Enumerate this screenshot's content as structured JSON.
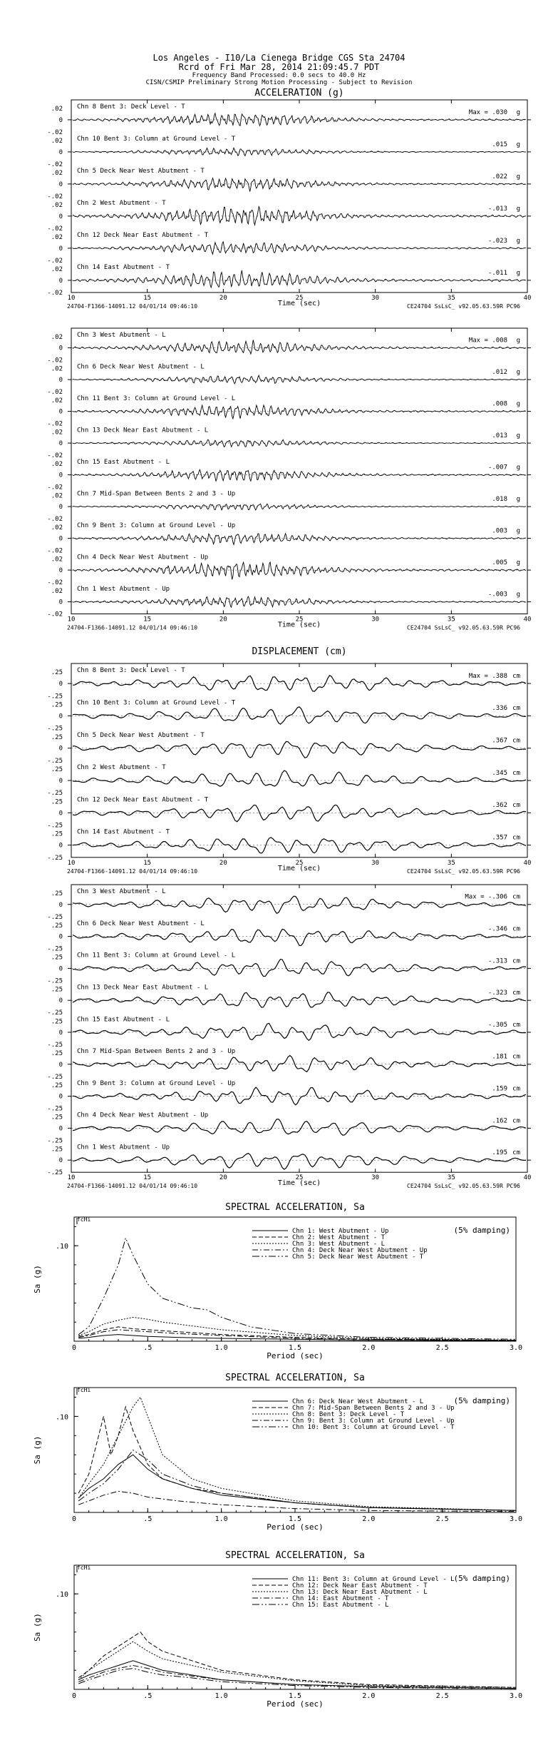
{
  "header": {
    "line1": "Los Angeles - I10/La Cienega Bridge     CGS Sta 24704",
    "line2": "Rcrd of Fri Mar 28, 2014 21:09:45.7 PDT",
    "line3": "Frequency Band Processed: 0.0 secs to 40.0 Hz",
    "line4": "CISN/CSMIP Preliminary Strong Motion Processing - Subject to Revision"
  },
  "footer": {
    "left": "24704-F1366-14091.12 04/01/14 09:46:10",
    "right": "CE24704  SsLsC_  v92.05.63.59R PC96",
    "time_label": "Time (sec)"
  },
  "time_ticks": [
    "10",
    "15",
    "20",
    "25",
    "30",
    "35",
    "40"
  ],
  "chart_data": [
    {
      "type": "line",
      "title": "ACCELERATION (g)",
      "xlabel": "Time (sec)",
      "xlim": [
        10,
        40
      ],
      "ylim": [
        -0.02,
        0.02
      ],
      "ytick_labels": [
        ".02",
        "0",
        "-.02"
      ],
      "max_label": "Max =",
      "series": [
        {
          "name": "Chn 8  Bent 3: Deck Level - T",
          "max": ".030",
          "unit": "g"
        },
        {
          "name": "Chn 10  Bent 3: Column at Ground Level - T",
          "max": ".015",
          "unit": "g"
        },
        {
          "name": "Chn 5  Deck Near West Abutment - T",
          "max": ".022",
          "unit": "g"
        },
        {
          "name": "Chn 2  West Abutment - T",
          "max": "-.013",
          "unit": "g"
        },
        {
          "name": "Chn 12  Deck Near East Abutment - T",
          "max": "-.023",
          "unit": "g"
        },
        {
          "name": "Chn 14  East Abutment - T",
          "max": "-.011",
          "unit": "g"
        }
      ]
    },
    {
      "type": "line",
      "title": "",
      "xlabel": "Time (sec)",
      "xlim": [
        10,
        40
      ],
      "ylim": [
        -0.02,
        0.02
      ],
      "ytick_labels": [
        ".02",
        "0",
        "-.02"
      ],
      "max_label": "Max =",
      "series": [
        {
          "name": "Chn 3  West Abutment - L",
          "max": ".008",
          "unit": "g"
        },
        {
          "name": "Chn 6  Deck Near West Abutment - L",
          "max": ".012",
          "unit": "g"
        },
        {
          "name": "Chn 11  Bent 3: Column at Ground Level - L",
          "max": ".008",
          "unit": "g"
        },
        {
          "name": "Chn 13  Deck Near East Abutment - L",
          "max": ".013",
          "unit": "g"
        },
        {
          "name": "Chn 15  East Abutment - L",
          "max": "-.007",
          "unit": "g"
        },
        {
          "name": "Chn 7  Mid-Span Between Bents 2 and 3 - Up",
          "max": ".018",
          "unit": "g"
        },
        {
          "name": "Chn 9  Bent 3: Column at Ground Level - Up",
          "max": ".003",
          "unit": "g"
        },
        {
          "name": "Chn 4  Deck Near West Abutment - Up",
          "max": ".005",
          "unit": "g"
        },
        {
          "name": "Chn 1  West Abutment - Up",
          "max": "-.003",
          "unit": "g"
        }
      ]
    },
    {
      "type": "line",
      "title": "DISPLACEMENT (cm)",
      "xlabel": "Time (sec)",
      "xlim": [
        10,
        40
      ],
      "ylim": [
        -0.25,
        0.25
      ],
      "ytick_labels": [
        ".25",
        "0",
        "-.25"
      ],
      "max_label": "Max =",
      "series": [
        {
          "name": "Chn 8  Bent 3: Deck Level - T",
          "max": ".388",
          "unit": "cm"
        },
        {
          "name": "Chn 10  Bent 3: Column at Ground Level - T",
          "max": ".336",
          "unit": "cm"
        },
        {
          "name": "Chn 5  Deck Near West Abutment - T",
          "max": ".367",
          "unit": "cm"
        },
        {
          "name": "Chn 2  West Abutment - T",
          "max": ".345",
          "unit": "cm"
        },
        {
          "name": "Chn 12  Deck Near East Abutment - T",
          "max": ".362",
          "unit": "cm"
        },
        {
          "name": "Chn 14  East Abutment - T",
          "max": ".357",
          "unit": "cm"
        }
      ]
    },
    {
      "type": "line",
      "title": "",
      "xlabel": "Time (sec)",
      "xlim": [
        10,
        40
      ],
      "ylim": [
        -0.25,
        0.25
      ],
      "ytick_labels": [
        ".25",
        "0",
        "-.25"
      ],
      "max_label": "Max =",
      "series": [
        {
          "name": "Chn 3  West Abutment - L",
          "max": "-.306",
          "unit": "cm"
        },
        {
          "name": "Chn 6  Deck Near West Abutment - L",
          "max": "-.346",
          "unit": "cm"
        },
        {
          "name": "Chn 11  Bent 3: Column at Ground Level - L",
          "max": "-.313",
          "unit": "cm"
        },
        {
          "name": "Chn 13  Deck Near East Abutment - L",
          "max": "-.323",
          "unit": "cm"
        },
        {
          "name": "Chn 15  East Abutment - L",
          "max": "-.305",
          "unit": "cm"
        },
        {
          "name": "Chn 7  Mid-Span Between Bents 2 and 3 - Up",
          "max": ".181",
          "unit": "cm"
        },
        {
          "name": "Chn 9  Bent 3: Column at Ground Level - Up",
          "max": ".159",
          "unit": "cm"
        },
        {
          "name": "Chn 4  Deck Near West Abutment - Up",
          "max": ".162",
          "unit": "cm"
        },
        {
          "name": "Chn 1  West Abutment - Up",
          "max": ".195",
          "unit": "cm"
        }
      ]
    },
    {
      "type": "line",
      "title": "SPECTRAL ACCELERATION, Sa",
      "xlabel": "Period (sec)",
      "ylabel": "Sa (g)",
      "xlim": [
        0,
        3.0
      ],
      "ylim": [
        0,
        0.13
      ],
      "xtick_labels": [
        "0",
        ".5",
        "1.0",
        "1.5",
        "2.0",
        "2.5",
        "3.0"
      ],
      "ytick_labels": [
        ".10"
      ],
      "marker_label": "fcHi",
      "damping": "(5% damping)",
      "series": [
        {
          "name": "Chn 1: West Abutment - Up",
          "x": [
            0.03,
            0.1,
            0.2,
            0.3,
            0.4,
            0.5,
            0.7,
            1.0,
            1.5,
            2.0,
            3.0
          ],
          "y": [
            0.003,
            0.004,
            0.006,
            0.007,
            0.006,
            0.005,
            0.004,
            0.003,
            0.002,
            0.001,
            0.0005
          ]
        },
        {
          "name": "Chn 2: West Abutment - T",
          "x": [
            0.03,
            0.1,
            0.2,
            0.3,
            0.4,
            0.5,
            0.6,
            0.8,
            1.0,
            1.5,
            2.0,
            3.0
          ],
          "y": [
            0.005,
            0.007,
            0.012,
            0.015,
            0.013,
            0.012,
            0.011,
            0.009,
            0.007,
            0.004,
            0.002,
            0.001
          ]
        },
        {
          "name": "Chn 3: West Abutment - L",
          "x": [
            0.03,
            0.1,
            0.2,
            0.3,
            0.4,
            0.5,
            0.6,
            0.8,
            1.0,
            1.5,
            2.0,
            3.0
          ],
          "y": [
            0.006,
            0.01,
            0.018,
            0.022,
            0.025,
            0.023,
            0.02,
            0.016,
            0.012,
            0.006,
            0.003,
            0.001
          ]
        },
        {
          "name": "Chn 4: Deck Near West Abutment - Up",
          "x": [
            0.03,
            0.1,
            0.2,
            0.3,
            0.4,
            0.5,
            0.7,
            1.0,
            1.5,
            2.0,
            3.0
          ],
          "y": [
            0.004,
            0.006,
            0.01,
            0.012,
            0.011,
            0.01,
            0.008,
            0.006,
            0.003,
            0.002,
            0.001
          ]
        },
        {
          "name": "Chn 5: Deck Near West Abutment - T",
          "x": [
            0.03,
            0.1,
            0.2,
            0.3,
            0.35,
            0.4,
            0.5,
            0.6,
            0.8,
            0.9,
            1.0,
            1.2,
            1.5,
            2.0,
            3.0
          ],
          "y": [
            0.007,
            0.015,
            0.045,
            0.08,
            0.108,
            0.09,
            0.06,
            0.045,
            0.035,
            0.033,
            0.025,
            0.015,
            0.008,
            0.004,
            0.002
          ]
        }
      ]
    },
    {
      "type": "line",
      "title": "SPECTRAL ACCELERATION, Sa",
      "xlabel": "Period (sec)",
      "ylabel": "Sa (g)",
      "xlim": [
        0,
        3.0
      ],
      "ylim": [
        0,
        0.13
      ],
      "xtick_labels": [
        "0",
        ".5",
        "1.0",
        "1.5",
        "2.0",
        "2.5",
        "3.0"
      ],
      "ytick_labels": [
        ".10"
      ],
      "marker_label": "fcHi",
      "damping": "(5% damping)",
      "series": [
        {
          "name": "Chn 6: Deck Near West Abutment - L",
          "x": [
            0.03,
            0.1,
            0.2,
            0.3,
            0.4,
            0.5,
            0.6,
            0.8,
            1.0,
            1.5,
            2.0,
            3.0
          ],
          "y": [
            0.015,
            0.025,
            0.035,
            0.05,
            0.06,
            0.045,
            0.035,
            0.025,
            0.018,
            0.01,
            0.005,
            0.002
          ]
        },
        {
          "name": "Chn 7: Mid-Span Between Bents 2 and 3 - Up",
          "x": [
            0.03,
            0.1,
            0.15,
            0.2,
            0.25,
            0.3,
            0.35,
            0.4,
            0.5,
            0.6,
            0.8,
            1.0,
            1.5,
            2.0,
            3.0
          ],
          "y": [
            0.02,
            0.04,
            0.07,
            0.1,
            0.06,
            0.08,
            0.11,
            0.085,
            0.05,
            0.035,
            0.025,
            0.02,
            0.01,
            0.005,
            0.002
          ]
        },
        {
          "name": "Chn 8: Bent 3: Deck Level - T",
          "x": [
            0.03,
            0.1,
            0.2,
            0.3,
            0.4,
            0.45,
            0.5,
            0.6,
            0.8,
            1.0,
            1.5,
            2.0,
            3.0
          ],
          "y": [
            0.015,
            0.03,
            0.05,
            0.08,
            0.11,
            0.12,
            0.1,
            0.06,
            0.035,
            0.025,
            0.012,
            0.006,
            0.002
          ]
        },
        {
          "name": "Chn 9: Bent 3: Column at Ground Level - Up",
          "x": [
            0.03,
            0.1,
            0.2,
            0.3,
            0.4,
            0.5,
            0.7,
            1.0,
            1.5,
            2.0,
            3.0
          ],
          "y": [
            0.008,
            0.012,
            0.018,
            0.022,
            0.02,
            0.016,
            0.012,
            0.008,
            0.004,
            0.002,
            0.001
          ]
        },
        {
          "name": "Chn 10: Bent 3: Column at Ground Level - T",
          "x": [
            0.03,
            0.1,
            0.2,
            0.3,
            0.4,
            0.5,
            0.6,
            0.8,
            1.0,
            1.5,
            2.0,
            3.0
          ],
          "y": [
            0.012,
            0.02,
            0.03,
            0.045,
            0.065,
            0.055,
            0.04,
            0.028,
            0.02,
            0.01,
            0.005,
            0.002
          ]
        }
      ]
    },
    {
      "type": "line",
      "title": "SPECTRAL ACCELERATION, Sa",
      "xlabel": "Period (sec)",
      "ylabel": "Sa (g)",
      "xlim": [
        0,
        3.0
      ],
      "ylim": [
        0,
        0.13
      ],
      "xtick_labels": [
        "0",
        ".5",
        "1.0",
        "1.5",
        "2.0",
        "2.5",
        "3.0"
      ],
      "ytick_labels": [
        ".10"
      ],
      "marker_label": "fcHi",
      "damping": "(5% damping)",
      "series": [
        {
          "name": "Chn 11: Bent 3: Column at Ground Level - L",
          "x": [
            0.03,
            0.1,
            0.2,
            0.3,
            0.4,
            0.5,
            0.6,
            0.8,
            1.0,
            1.5,
            2.0,
            3.0
          ],
          "y": [
            0.01,
            0.015,
            0.02,
            0.025,
            0.03,
            0.025,
            0.02,
            0.015,
            0.01,
            0.005,
            0.003,
            0.001
          ]
        },
        {
          "name": "Chn 12: Deck Near East Abutment - T",
          "x": [
            0.03,
            0.1,
            0.2,
            0.3,
            0.4,
            0.45,
            0.5,
            0.6,
            0.8,
            1.0,
            1.5,
            2.0,
            3.0
          ],
          "y": [
            0.012,
            0.02,
            0.035,
            0.045,
            0.055,
            0.06,
            0.05,
            0.04,
            0.03,
            0.02,
            0.01,
            0.005,
            0.002
          ]
        },
        {
          "name": "Chn 13: Deck Near East Abutment - L",
          "x": [
            0.03,
            0.1,
            0.2,
            0.3,
            0.4,
            0.5,
            0.6,
            0.8,
            1.0,
            1.5,
            2.0,
            3.0
          ],
          "y": [
            0.01,
            0.02,
            0.03,
            0.04,
            0.05,
            0.04,
            0.032,
            0.025,
            0.018,
            0.009,
            0.004,
            0.002
          ]
        },
        {
          "name": "Chn 14: East Abutment - T",
          "x": [
            0.03,
            0.1,
            0.2,
            0.3,
            0.4,
            0.5,
            0.6,
            0.8,
            1.0,
            1.5,
            2.0,
            3.0
          ],
          "y": [
            0.008,
            0.012,
            0.018,
            0.022,
            0.025,
            0.022,
            0.018,
            0.014,
            0.01,
            0.005,
            0.003,
            0.001
          ]
        },
        {
          "name": "Chn 15: East Abutment - L",
          "x": [
            0.03,
            0.1,
            0.2,
            0.3,
            0.4,
            0.5,
            0.6,
            0.8,
            1.0,
            1.5,
            2.0,
            3.0
          ],
          "y": [
            0.006,
            0.01,
            0.015,
            0.02,
            0.022,
            0.018,
            0.015,
            0.012,
            0.008,
            0.004,
            0.002,
            0.001
          ]
        }
      ]
    }
  ]
}
